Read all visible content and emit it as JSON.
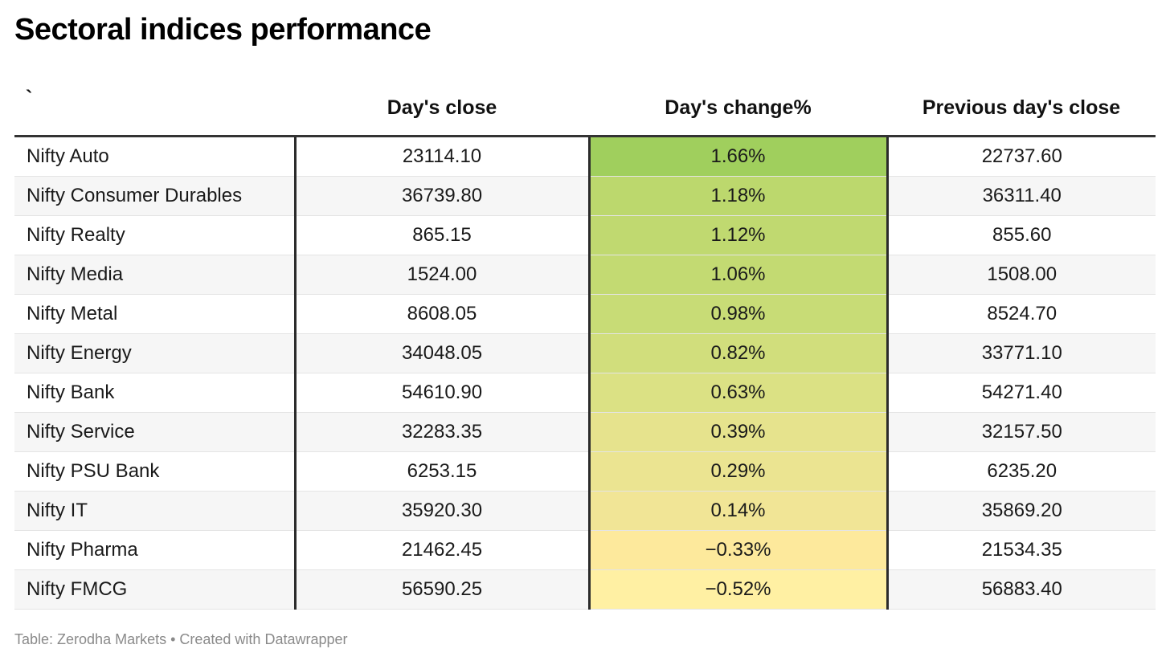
{
  "title": "Sectoral indices performance",
  "footer": "Table: Zerodha Markets • Created with Datawrapper",
  "chart_data": {
    "type": "table",
    "columns": [
      "`",
      "Day's close",
      "Day's change%",
      "Previous day's close"
    ],
    "rows": [
      {
        "name": "Nifty Auto",
        "close": "23114.10",
        "change": "1.66%",
        "change_value": 1.66,
        "prev_close": "22737.60",
        "color": "#a0cf5d"
      },
      {
        "name": "Nifty Consumer Durables",
        "close": "36739.80",
        "change": "1.18%",
        "change_value": 1.18,
        "prev_close": "36311.40",
        "color": "#bcd86d"
      },
      {
        "name": "Nifty Realty",
        "close": "865.15",
        "change": "1.12%",
        "change_value": 1.12,
        "prev_close": "855.60",
        "color": "#c0d970"
      },
      {
        "name": "Nifty Media",
        "close": "1524.00",
        "change": "1.06%",
        "change_value": 1.06,
        "prev_close": "1508.00",
        "color": "#c3da72"
      },
      {
        "name": "Nifty Metal",
        "close": "8608.05",
        "change": "0.98%",
        "change_value": 0.98,
        "prev_close": "8524.70",
        "color": "#c8dc76"
      },
      {
        "name": "Nifty Energy",
        "close": "34048.05",
        "change": "0.82%",
        "change_value": 0.82,
        "prev_close": "33771.10",
        "color": "#d1de7c"
      },
      {
        "name": "Nifty Bank",
        "close": "54610.90",
        "change": "0.63%",
        "change_value": 0.63,
        "prev_close": "54271.40",
        "color": "#dbe184"
      },
      {
        "name": "Nifty Service",
        "close": "32283.35",
        "change": "0.39%",
        "change_value": 0.39,
        "prev_close": "32157.50",
        "color": "#e6e38d"
      },
      {
        "name": "Nifty PSU Bank",
        "close": "6253.15",
        "change": "0.29%",
        "change_value": 0.29,
        "prev_close": "6235.20",
        "color": "#ebe491"
      },
      {
        "name": "Nifty IT",
        "close": "35920.30",
        "change": "0.14%",
        "change_value": 0.14,
        "prev_close": "35869.20",
        "color": "#f1e596"
      },
      {
        "name": "Nifty Pharma",
        "close": "21462.45",
        "change": "−0.33%",
        "change_value": -0.33,
        "prev_close": "21534.35",
        "color": "#fde99c"
      },
      {
        "name": "Nifty FMCG",
        "close": "56590.25",
        "change": "−0.52%",
        "change_value": -0.52,
        "prev_close": "56883.40",
        "color": "#fff0a3"
      }
    ]
  }
}
